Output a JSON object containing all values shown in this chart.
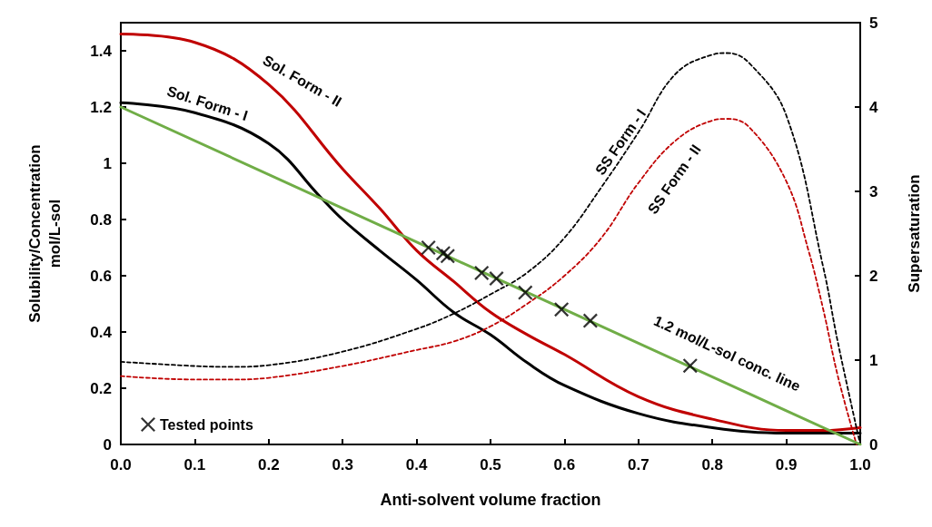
{
  "chart_data": {
    "type": "line",
    "xlabel": "Anti-solvent volume fraction",
    "ylabel": "Solubility/Concentration\nmol/L-sol",
    "y2label": "Supersaturation",
    "xlim": [
      0,
      1
    ],
    "xticks": [
      {
        "value": 0,
        "label": "0.0"
      },
      0.1,
      0.2,
      0.3,
      0.4,
      0.5,
      0.6,
      0.7,
      0.8,
      0.9,
      {
        "value": 1,
        "label": "1.0"
      }
    ],
    "ylim": [
      0,
      1.5
    ],
    "yticks": [
      0,
      0.2,
      0.4,
      0.6,
      0.8,
      1,
      1.2,
      1.4
    ],
    "y2lim": [
      0,
      5
    ],
    "y2ticks": [
      0,
      1,
      2,
      3,
      4,
      5
    ],
    "grid": false,
    "legend": "bottom left",
    "series": [
      {
        "name": "Sol. Form - II",
        "color": "#c00000",
        "marker": "none",
        "line_style": "solid",
        "x": [
          0,
          0.1,
          0.2,
          0.3,
          0.35,
          0.4,
          0.45,
          0.5,
          0.55,
          0.6,
          0.7,
          0.8,
          0.9,
          0.95,
          1.0
        ],
        "values": [
          1.46,
          1.43,
          1.28,
          0.98,
          0.84,
          0.69,
          0.58,
          0.47,
          0.39,
          0.32,
          0.17,
          0.09,
          0.05,
          0.05,
          0.06
        ]
      },
      {
        "name": "Sol. Form - I",
        "color": "#000000",
        "marker": "none",
        "line_style": "solid",
        "x": [
          0,
          0.1,
          0.2,
          0.27,
          0.3,
          0.35,
          0.4,
          0.45,
          0.5,
          0.55,
          0.6,
          0.7,
          0.8,
          0.9,
          1.0
        ],
        "values": [
          1.215,
          1.18,
          1.07,
          0.88,
          0.8,
          0.69,
          0.585,
          0.47,
          0.39,
          0.29,
          0.21,
          0.11,
          0.06,
          0.04,
          0.04
        ]
      },
      {
        "name": "SS Form - I",
        "color": "#000000",
        "marker": "none",
        "line_style": "dashed",
        "axis": "y2",
        "x": [
          0,
          0.1,
          0.15,
          0.2,
          0.3,
          0.4,
          0.45,
          0.5,
          0.55,
          0.6,
          0.65,
          0.7,
          0.75,
          0.8,
          0.82,
          0.85,
          0.9,
          0.95,
          0.97,
          1.0
        ],
        "values": [
          0.98,
          0.93,
          0.92,
          0.94,
          1.1,
          1.37,
          1.55,
          1.78,
          2.04,
          2.45,
          3.05,
          3.7,
          4.39,
          4.62,
          4.64,
          4.52,
          3.9,
          2.1,
          1.2,
          0
        ]
      },
      {
        "name": "SS Form - II",
        "color": "#c00000",
        "marker": "none",
        "line_style": "dashed",
        "axis": "y2",
        "x": [
          0,
          0.1,
          0.15,
          0.2,
          0.3,
          0.4,
          0.45,
          0.5,
          0.55,
          0.6,
          0.65,
          0.7,
          0.75,
          0.8,
          0.82,
          0.85,
          0.9,
          0.93,
          0.95,
          0.97,
          0.995
        ],
        "values": [
          0.81,
          0.77,
          0.77,
          0.79,
          0.93,
          1.12,
          1.22,
          1.4,
          1.67,
          2.0,
          2.45,
          3.1,
          3.6,
          3.84,
          3.86,
          3.76,
          3.12,
          2.3,
          1.6,
          0.8,
          0
        ]
      },
      {
        "name": "1.2 mol/L-sol conc. line",
        "color": "#70ad47",
        "marker": "none",
        "line_style": "solid",
        "x": [
          0,
          0.85,
          1.0
        ],
        "values": [
          1.2,
          0.18,
          0
        ]
      },
      {
        "name": "Tested points",
        "type": "scatter",
        "color": "#000000",
        "marker": "cross",
        "x": [
          0.416,
          0.436,
          0.442,
          0.488,
          0.508,
          0.547,
          0.596,
          0.635,
          0.77
        ],
        "values": [
          0.7,
          0.68,
          0.67,
          0.61,
          0.59,
          0.54,
          0.48,
          0.44,
          0.28
        ]
      }
    ]
  }
}
